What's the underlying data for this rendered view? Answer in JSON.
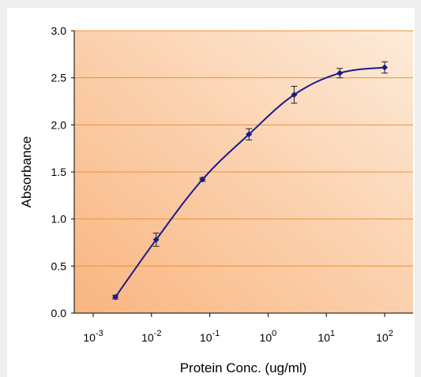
{
  "chart_data": {
    "type": "line",
    "title": "",
    "xlabel": "Protein Conc. (ug/ml)",
    "ylabel": "Absorbance",
    "x_scale": "log",
    "xlim": [
      0.001,
      100
    ],
    "ylim": [
      0,
      3.0
    ],
    "y_ticks": [
      "0.0",
      "0.5",
      "1.0",
      "1.5",
      "2.0",
      "2.5",
      "3.0"
    ],
    "x_ticks": [
      {
        "base": "10",
        "exp": "-3"
      },
      {
        "base": "10",
        "exp": "-2"
      },
      {
        "base": "10",
        "exp": "-1"
      },
      {
        "base": "10",
        "exp": "0"
      },
      {
        "base": "10",
        "exp": "1"
      },
      {
        "base": "10",
        "exp": "2"
      }
    ],
    "grid": "horizontal",
    "legend": "none",
    "colors": {
      "line": "#1a1a8c",
      "marker": "#1a1a8c",
      "grid": "#e8923c",
      "plot_bg_light": "#fde9d6",
      "plot_bg_dark": "#f9b785"
    },
    "series": [
      {
        "x": [
          0.0024,
          0.012,
          0.075,
          0.47,
          2.8,
          17,
          100
        ],
        "y": [
          0.17,
          0.78,
          1.42,
          1.9,
          2.32,
          2.55,
          2.61
        ],
        "error": [
          0.02,
          0.07,
          0.02,
          0.06,
          0.09,
          0.05,
          0.06
        ]
      }
    ]
  }
}
